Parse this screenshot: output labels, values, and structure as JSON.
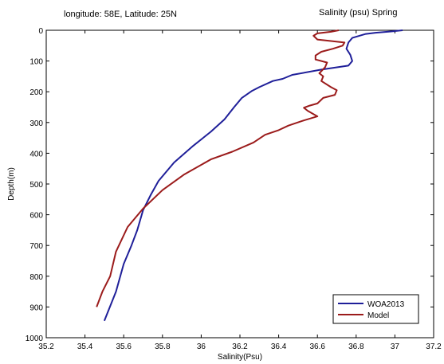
{
  "header": {
    "location": "longitude: 58E, Latitude: 25N",
    "variable": "Salinity (psu)  Spring"
  },
  "chart_data": {
    "type": "line",
    "title": "",
    "xlabel": "Salinity(Psu)",
    "ylabel": "Depth(m)",
    "xlim": [
      35.2,
      37.2
    ],
    "ylim": [
      0,
      1000
    ],
    "y_reversed": true,
    "xticks": [
      "35.2",
      "35.4",
      "35.6",
      "35.8",
      "36",
      "36.2",
      "36.4",
      "36.6",
      "36.8",
      "37",
      "37.2"
    ],
    "yticks": [
      "0",
      "100",
      "200",
      "300",
      "400",
      "500",
      "600",
      "700",
      "800",
      "900",
      "1000"
    ],
    "grid": false,
    "legend_position": "bottom-right",
    "series": [
      {
        "name": "WOA2013",
        "color": "#1f1f99",
        "points": [
          [
            37.04,
            0
          ],
          [
            36.98,
            4
          ],
          [
            36.9,
            8
          ],
          [
            36.85,
            12
          ],
          [
            36.78,
            25
          ],
          [
            36.76,
            40
          ],
          [
            36.75,
            60
          ],
          [
            36.77,
            80
          ],
          [
            36.78,
            100
          ],
          [
            36.76,
            115
          ],
          [
            36.62,
            128
          ],
          [
            36.47,
            145
          ],
          [
            36.42,
            158
          ],
          [
            36.37,
            165
          ],
          [
            36.3,
            185
          ],
          [
            36.26,
            198
          ],
          [
            36.21,
            220
          ],
          [
            36.17,
            250
          ],
          [
            36.12,
            290
          ],
          [
            36.05,
            330
          ],
          [
            35.96,
            375
          ],
          [
            35.86,
            430
          ],
          [
            35.78,
            490
          ],
          [
            35.74,
            535
          ],
          [
            35.7,
            585
          ],
          [
            35.67,
            650
          ],
          [
            35.64,
            700
          ],
          [
            35.6,
            760
          ],
          [
            35.56,
            850
          ],
          [
            35.5,
            945
          ]
        ]
      },
      {
        "name": "Model",
        "color": "#9b1b1b",
        "points": [
          [
            36.71,
            0
          ],
          [
            36.67,
            5
          ],
          [
            36.6,
            10
          ],
          [
            36.58,
            18
          ],
          [
            36.6,
            30
          ],
          [
            36.74,
            40
          ],
          [
            36.73,
            50
          ],
          [
            36.68,
            60
          ],
          [
            36.62,
            70
          ],
          [
            36.59,
            82
          ],
          [
            36.59,
            95
          ],
          [
            36.65,
            105
          ],
          [
            36.64,
            120
          ],
          [
            36.61,
            140
          ],
          [
            36.63,
            150
          ],
          [
            36.62,
            165
          ],
          [
            36.67,
            185
          ],
          [
            36.7,
            195
          ],
          [
            36.69,
            210
          ],
          [
            36.63,
            220
          ],
          [
            36.6,
            238
          ],
          [
            36.56,
            245
          ],
          [
            36.53,
            252
          ],
          [
            36.55,
            262
          ],
          [
            36.6,
            280
          ],
          [
            36.52,
            295
          ],
          [
            36.45,
            310
          ],
          [
            36.4,
            325
          ],
          [
            36.33,
            340
          ],
          [
            36.27,
            365
          ],
          [
            36.16,
            395
          ],
          [
            36.05,
            420
          ],
          [
            35.91,
            470
          ],
          [
            35.8,
            520
          ],
          [
            35.7,
            580
          ],
          [
            35.62,
            640
          ],
          [
            35.56,
            720
          ],
          [
            35.53,
            800
          ],
          [
            35.49,
            850
          ],
          [
            35.46,
            900
          ]
        ]
      }
    ]
  }
}
